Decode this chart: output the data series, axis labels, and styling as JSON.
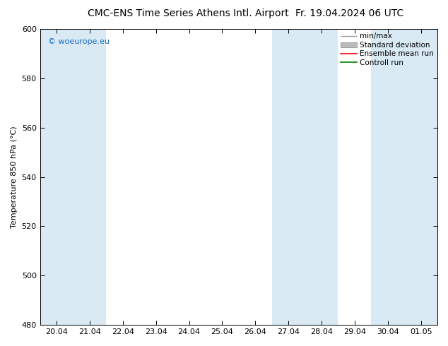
{
  "title_left": "CMC-ENS Time Series Athens Intl. Airport",
  "title_right": "Fr. 19.04.2024 06 UTC",
  "ylabel": "Temperature 850 hPa (°C)",
  "ylim": [
    480,
    600
  ],
  "yticks": [
    480,
    500,
    520,
    540,
    560,
    580,
    600
  ],
  "xtick_labels": [
    "20.04",
    "21.04",
    "22.04",
    "23.04",
    "24.04",
    "25.04",
    "26.04",
    "27.04",
    "28.04",
    "29.04",
    "30.04",
    "01.05"
  ],
  "watermark": "© woeurope.eu",
  "watermark_color": "#1a6bc7",
  "bg_color": "#ffffff",
  "plot_bg_color": "#ffffff",
  "shaded_regions": [
    {
      "xstart": -0.5,
      "xend": 1.5,
      "color": "#d9eaf5"
    },
    {
      "xstart": 6.5,
      "xend": 8.5,
      "color": "#d9eaf5"
    },
    {
      "xstart": 9.5,
      "xend": 11.5,
      "color": "#d9eaf5"
    }
  ],
  "legend_items": [
    {
      "label": "min/max",
      "color": "#999999",
      "lw": 1.0,
      "style": "errorbar"
    },
    {
      "label": "Standard deviation",
      "color": "#bbbbbb",
      "lw": 5,
      "style": "band"
    },
    {
      "label": "Ensemble mean run",
      "color": "#ff0000",
      "lw": 1.2,
      "style": "line"
    },
    {
      "label": "Controll run",
      "color": "#008000",
      "lw": 1.2,
      "style": "line"
    }
  ],
  "title_fontsize": 10,
  "axis_fontsize": 8,
  "tick_fontsize": 8,
  "legend_fontsize": 7.5,
  "watermark_fontsize": 8
}
